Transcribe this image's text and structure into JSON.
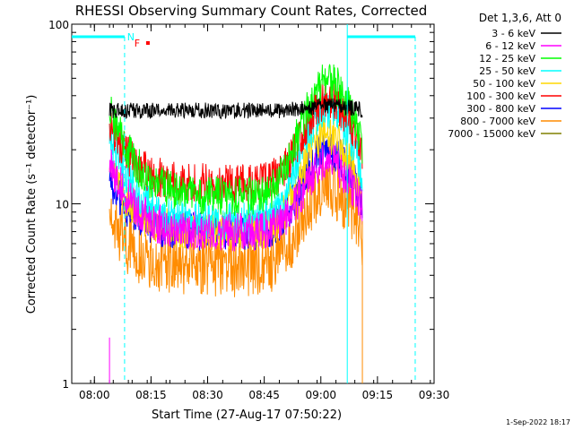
{
  "chart_data": {
    "type": "line",
    "title": "RHESSI Observing Summary Count Rates, Corrected",
    "xlabel": "Start Time (27-Aug-17 07:50:22)",
    "ylabel": "Corrected Count Rate (s⁻¹ detector⁻¹)",
    "y_scale": "log",
    "ylim": [
      1,
      100
    ],
    "xlim": [
      "07:54",
      "09:30"
    ],
    "x_ticks": [
      "08:00",
      "08:15",
      "08:30",
      "08:45",
      "09:00",
      "09:15",
      "09:30"
    ],
    "y_ticks": [
      "1",
      "10",
      "100"
    ],
    "legend_title": "Det 1,3,6, Att 0",
    "legend_position": "right",
    "timestamp": "1-Sep-2022 18:17",
    "flags": [
      {
        "label": "N",
        "color": "#00ffff"
      },
      {
        "label": "F",
        "color": "#ff0000"
      }
    ],
    "series": [
      {
        "name": "3 - 6 keV",
        "color": "#000000",
        "plateau": 33,
        "base": 33,
        "peak": 35
      },
      {
        "name": "6 - 12 keV",
        "color": "#ff00ff",
        "plateau": 17,
        "base": 7,
        "peak": 17
      },
      {
        "name": "12 - 25 keV",
        "color": "#00ff00",
        "plateau": 34,
        "base": 11,
        "peak": 48
      },
      {
        "name": "25 - 50 keV",
        "color": "#00ffff",
        "plateau": 23,
        "base": 8,
        "peak": 33
      },
      {
        "name": "50 - 100 keV",
        "color": "#ffd700",
        "plateau": 16,
        "base": 7,
        "peak": 24
      },
      {
        "name": "100 - 300 keV",
        "color": "#ff0000",
        "plateau": 28,
        "base": 13,
        "peak": 38
      },
      {
        "name": "300 - 800 keV",
        "color": "#0000ff",
        "plateau": 13,
        "base": 7,
        "peak": 20
      },
      {
        "name": "800 - 7000 keV",
        "color": "#ff8c00",
        "plateau": 8.5,
        "base": 4.5,
        "peak": 12.5
      },
      {
        "name": "7000 - 15000 keV",
        "color": "#808000",
        "plateau": null,
        "base": null,
        "peak": null
      }
    ],
    "data_window": [
      "08:04",
      "09:11"
    ],
    "peak_time": "09:02",
    "observing_intervals": [
      {
        "start": "07:54",
        "end": "08:08"
      },
      {
        "start": "09:07",
        "end": "09:25"
      }
    ]
  }
}
